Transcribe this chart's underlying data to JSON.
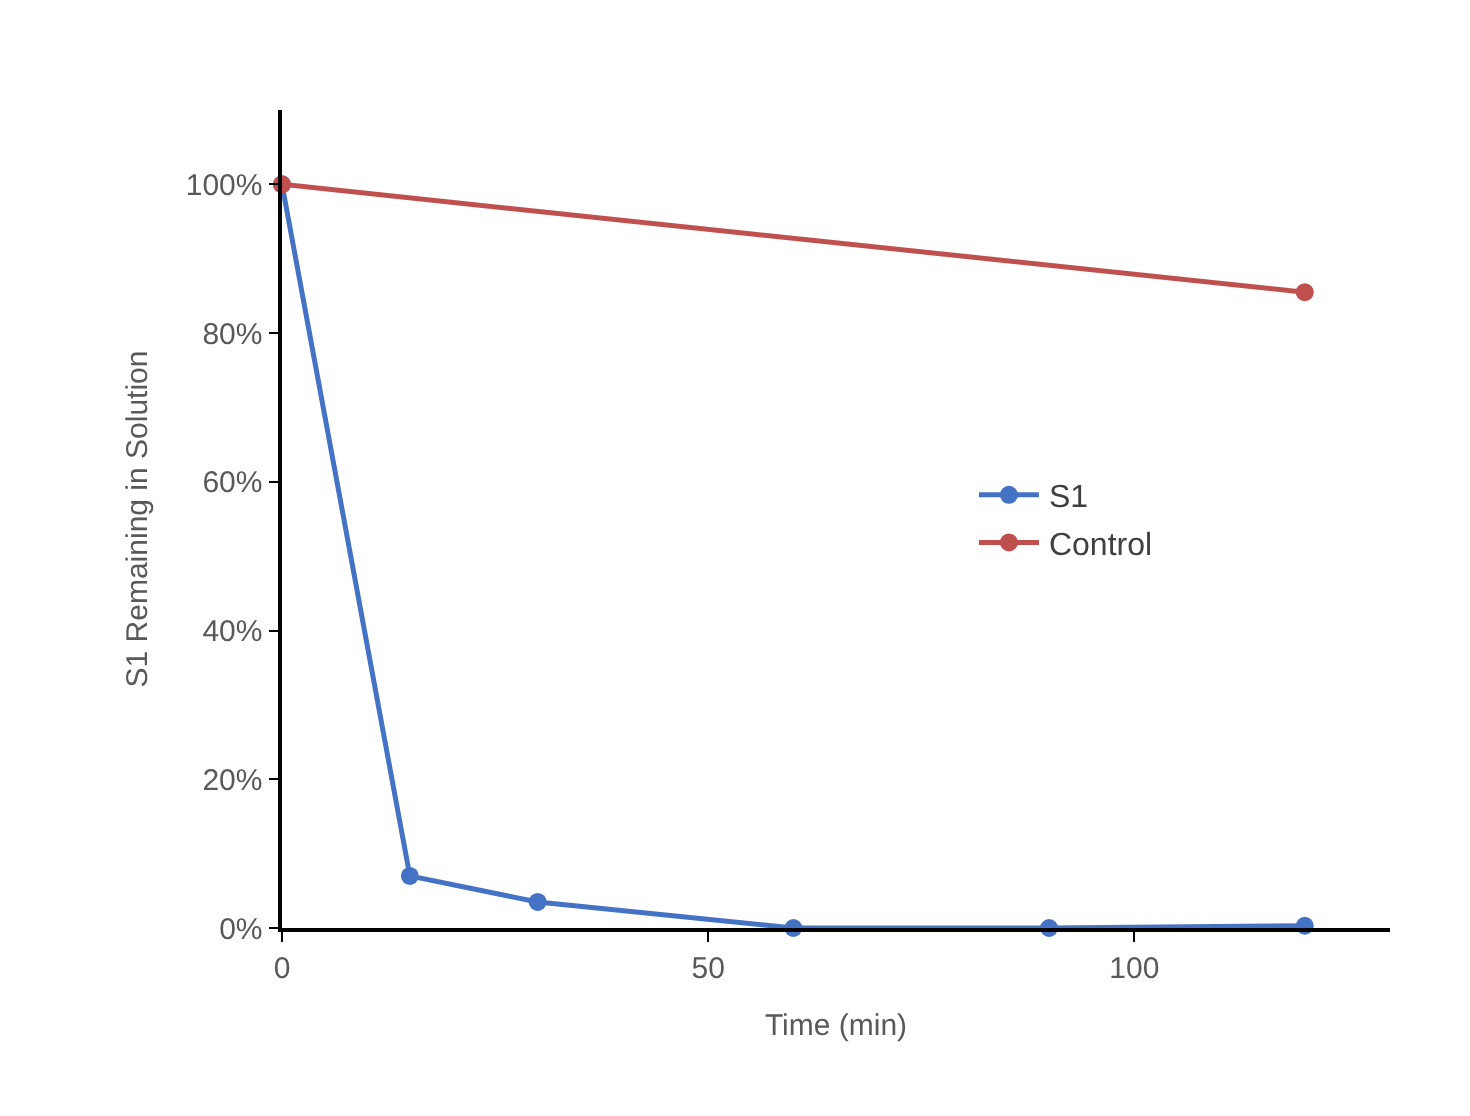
{
  "chart_data": {
    "type": "line",
    "xlabel": "Time (min)",
    "ylabel": "S1 Remaining in Solution",
    "series": [
      {
        "name": "S1",
        "color": "#4472c4",
        "x": [
          0,
          15,
          30,
          60,
          90,
          120
        ],
        "values": [
          100,
          7,
          3.5,
          0,
          0,
          0.3
        ]
      },
      {
        "name": "Control",
        "color": "#c0504d",
        "x": [
          0,
          120
        ],
        "values": [
          100,
          85.5
        ]
      }
    ],
    "xlim": [
      0,
      130
    ],
    "xticks": [
      0,
      50,
      100
    ],
    "ylim": [
      0,
      110
    ],
    "yticks": [
      {
        "value": 0,
        "label": "0%"
      },
      {
        "value": 20,
        "label": "20%"
      },
      {
        "value": 40,
        "label": "40%"
      },
      {
        "value": 60,
        "label": "60%"
      },
      {
        "value": 80,
        "label": "80%"
      },
      {
        "value": 100,
        "label": "100%"
      }
    ],
    "legend": "right",
    "marker": "circle",
    "line_style": "solid"
  }
}
